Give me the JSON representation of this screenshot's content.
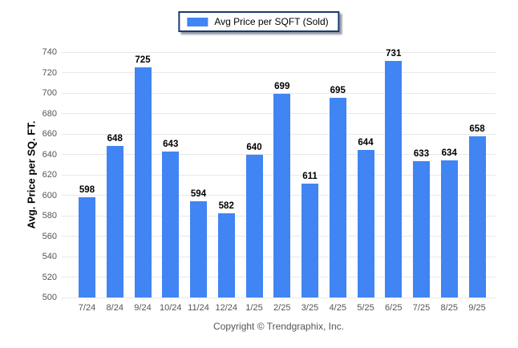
{
  "legend": {
    "series_label": "Avg Price per SQFT (Sold)"
  },
  "chart_data": {
    "type": "bar",
    "title": "Avg Price per SQFT (Sold)",
    "categories": [
      "7/24",
      "8/24",
      "9/24",
      "10/24",
      "11/24",
      "12/24",
      "1/25",
      "2/25",
      "3/25",
      "4/25",
      "5/25",
      "6/25",
      "7/25",
      "8/25",
      "9/25"
    ],
    "values": [
      598,
      648,
      725,
      643,
      594,
      582,
      640,
      699,
      611,
      695,
      644,
      731,
      633,
      634,
      658
    ],
    "xlabel": "",
    "ylabel": "Avg. Price per SQ. FT.",
    "ylim": [
      500,
      740
    ],
    "ytick_step": 20,
    "grid": "horizontal",
    "legend_position": "top-center",
    "data_labels": true
  },
  "footer": {
    "copyright": "Copyright © Trendgraphix, Inc."
  },
  "colors": {
    "bar": "#4184F3",
    "grid": "#E8E8E8",
    "axis_text": "#555555",
    "value_label": "#000000",
    "legend_border": "#1B3A6B",
    "background": "#FFFFFF"
  }
}
